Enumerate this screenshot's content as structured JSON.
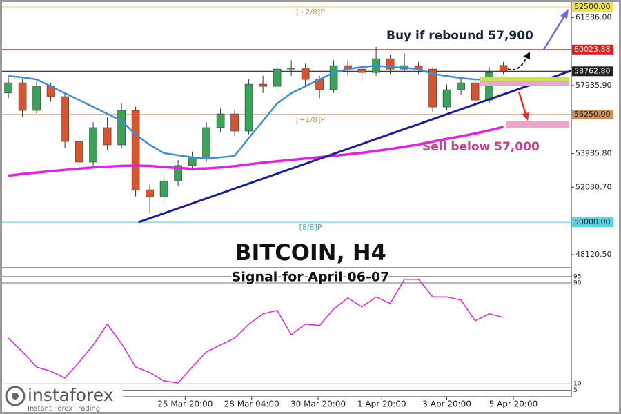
{
  "chart_data": [
    {
      "type": "candlestick",
      "title": "BITCOIN, H4",
      "subtitle": "Signal for April 06-07",
      "xlim": [
        -0.59,
        39.8
      ],
      "ylim": [
        47480,
        62900
      ],
      "xticks": [
        {
          "value": 12.5,
          "label": "25 Mar 20:00"
        },
        {
          "value": 17.2,
          "label": "28 Mar 04:00"
        },
        {
          "value": 21.9,
          "label": "30 Mar 20:00"
        },
        {
          "value": 26.4,
          "label": "1 Apr 20:00"
        },
        {
          "value": 31.0,
          "label": "3 Apr 20:00"
        },
        {
          "value": 35.7,
          "label": "5 Apr 20:00"
        }
      ],
      "yticks": [
        {
          "value": 61886,
          "label": "61886.00"
        },
        {
          "value": 57935.9,
          "label": "57935.90"
        },
        {
          "value": 53985.8,
          "label": "53985.80"
        },
        {
          "value": 52030.7,
          "label": "52030.70"
        },
        {
          "value": 48120.5,
          "label": "48120.50"
        }
      ],
      "up_color": "#3aa35a",
      "down_color": "#d9542c",
      "open": [
        57500,
        58090,
        56490,
        57900,
        57290,
        54690,
        53490,
        55490,
        54490,
        56490,
        51880,
        51480,
        52400,
        53290,
        53770,
        55490,
        56290,
        55290,
        58010,
        57890,
        58890,
        58950,
        58290,
        57690,
        59090,
        58890,
        58690,
        59490,
        58890,
        59090,
        58890,
        56690,
        57690,
        58090,
        57090,
        59100
      ],
      "high": [
        58400,
        58300,
        58200,
        58100,
        57500,
        55000,
        55800,
        56100,
        56900,
        56700,
        52200,
        52700,
        53600,
        54100,
        55800,
        56600,
        56500,
        58300,
        58500,
        59300,
        59400,
        59200,
        58500,
        59400,
        59400,
        59100,
        60180,
        59700,
        59800,
        59300,
        59000,
        58000,
        58400,
        58300,
        59000,
        59300
      ],
      "low": [
        57200,
        56100,
        56300,
        57000,
        54300,
        53100,
        53300,
        54200,
        54300,
        51500,
        50500,
        51100,
        52100,
        53000,
        53500,
        55200,
        55000,
        55100,
        57500,
        57600,
        58500,
        57900,
        57200,
        57500,
        58500,
        58300,
        58500,
        58600,
        58700,
        58600,
        56400,
        56500,
        57400,
        56800,
        56900,
        58600
      ],
      "close": [
        58090,
        56490,
        57900,
        57290,
        54690,
        53490,
        55490,
        54490,
        56490,
        51880,
        51480,
        52400,
        53290,
        53770,
        55490,
        56290,
        55290,
        58010,
        57890,
        58890,
        58950,
        58290,
        57690,
        59090,
        58890,
        58690,
        59490,
        58890,
        59090,
        58890,
        56690,
        57690,
        58090,
        57090,
        58690,
        58760
      ],
      "overlays": [
        {
          "color": "#3b8fd9",
          "values": [
            58490,
            58410,
            58290,
            57890,
            57490,
            57090,
            56690,
            56290,
            55890,
            55090,
            54490,
            54010,
            53890,
            53770,
            53690,
            53770,
            53850,
            54890,
            55890,
            56890,
            57490,
            57890,
            58290,
            58690,
            58890,
            59010,
            59090,
            59010,
            58970,
            58890,
            58610,
            58490,
            58370,
            58290,
            58290,
            58290
          ]
        },
        {
          "color": "#e61ee6",
          "values": [
            52700,
            52800,
            52880,
            52960,
            53040,
            53110,
            53180,
            53230,
            53270,
            53290,
            53270,
            53200,
            53150,
            53100,
            53120,
            53180,
            53260,
            53360,
            53460,
            53540,
            53620,
            53700,
            53780,
            53860,
            53940,
            54030,
            54140,
            54250,
            54380,
            54520,
            54680,
            54840,
            54990,
            55150,
            55330,
            55540
          ]
        }
      ],
      "trendline": {
        "color": "#1a1aa8",
        "x": [
          9.2,
          39.8
        ],
        "values": [
          50000,
          58800
        ]
      },
      "levels": [
        {
          "value": 62500,
          "label": "62500.00",
          "name": "[+2/8]P",
          "color": "#f2e14a"
        },
        {
          "value": 60023.88,
          "label": "60023.88",
          "color": "#e02020"
        },
        {
          "value": 58762.8,
          "label": "58762.80",
          "color": "#222222"
        },
        {
          "value": 56250,
          "label": "56250.00",
          "name": "[+1/8]P",
          "color": "#c8915a"
        },
        {
          "value": 50000,
          "label": "50000.00",
          "name": "[8/8]P",
          "color": "#4fd6e8"
        }
      ],
      "annotations": [
        {
          "text": "Buy if rebound 57,900",
          "color": "#1c2540"
        },
        {
          "text": "Sell below 57,000",
          "color": "#d43a8c"
        }
      ]
    },
    {
      "type": "line",
      "xlim": [
        -0.59,
        39.8
      ],
      "ylim": [
        0,
        100
      ],
      "yticks": [
        95,
        90,
        10,
        5
      ],
      "color": "#e020e0",
      "values": [
        46.3,
        35.3,
        23.3,
        20.0,
        14.5,
        27.1,
        40.8,
        57.3,
        41.9,
        23.3,
        18.9,
        12.3,
        10.7,
        23.3,
        35.3,
        40.8,
        46.3,
        57.3,
        65.5,
        68.2,
        49.0,
        57.3,
        56.2,
        69.3,
        78.1,
        71.0,
        78.9,
        73.7,
        92.9,
        92.9,
        78.9,
        78.9,
        76.4,
        60.0,
        65.5,
        62.7
      ]
    }
  ],
  "logo": {
    "name": "instaforex",
    "tagline": "Instant Forex Trading"
  }
}
